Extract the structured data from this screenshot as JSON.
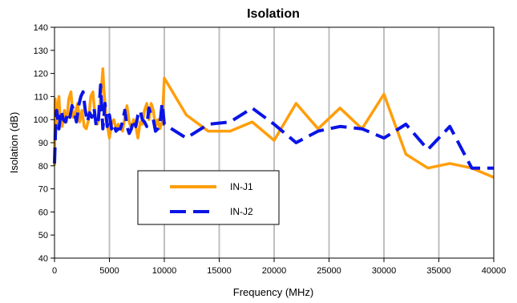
{
  "chart_data": {
    "type": "line",
    "title": "Isolation",
    "xlabel": "Frequency (MHz)",
    "ylabel": "Isolation  (dB)",
    "xlim": [
      0,
      40000
    ],
    "ylim": [
      40,
      140
    ],
    "xticks": [
      0,
      5000,
      10000,
      15000,
      20000,
      25000,
      30000,
      35000,
      40000
    ],
    "yticks": [
      40,
      50,
      60,
      70,
      80,
      90,
      100,
      110,
      120,
      130,
      140
    ],
    "vertical_grid": true,
    "horizontal_grid": false,
    "legend_position": "lower-left-center",
    "series": [
      {
        "name": "IN-J1",
        "color": "#FF9E0B",
        "style": "solid",
        "points": [
          [
            0,
            80
          ],
          [
            60,
            109
          ],
          [
            150,
            97
          ],
          [
            300,
            106
          ],
          [
            400,
            110
          ],
          [
            550,
            98
          ],
          [
            700,
            97
          ],
          [
            900,
            104
          ],
          [
            1100,
            99
          ],
          [
            1300,
            109
          ],
          [
            1500,
            112
          ],
          [
            1700,
            101
          ],
          [
            1900,
            103
          ],
          [
            2100,
            107
          ],
          [
            2300,
            99
          ],
          [
            2500,
            104
          ],
          [
            2700,
            97
          ],
          [
            2900,
            96
          ],
          [
            3100,
            100
          ],
          [
            3300,
            110
          ],
          [
            3500,
            112
          ],
          [
            3700,
            101
          ],
          [
            3900,
            98
          ],
          [
            4100,
            104
          ],
          [
            4300,
            115
          ],
          [
            4400,
            122
          ],
          [
            4500,
            113
          ],
          [
            4700,
            100
          ],
          [
            4900,
            95
          ],
          [
            5000,
            92
          ],
          [
            5200,
            98
          ],
          [
            5400,
            100
          ],
          [
            5600,
            96
          ],
          [
            5800,
            98
          ],
          [
            6000,
            97
          ],
          [
            6200,
            95
          ],
          [
            6400,
            101
          ],
          [
            6600,
            106
          ],
          [
            6800,
            99
          ],
          [
            7000,
            96
          ],
          [
            7200,
            100
          ],
          [
            7400,
            97
          ],
          [
            7600,
            92
          ],
          [
            7800,
            99
          ],
          [
            8000,
            98
          ],
          [
            8200,
            104
          ],
          [
            8400,
            107
          ],
          [
            8600,
            100
          ],
          [
            8800,
            107
          ],
          [
            9000,
            104
          ],
          [
            9200,
            97
          ],
          [
            9400,
            100
          ],
          [
            9600,
            96
          ],
          [
            9800,
            99
          ],
          [
            10000,
            118
          ],
          [
            12000,
            102
          ],
          [
            14000,
            95
          ],
          [
            16000,
            95
          ],
          [
            18000,
            99
          ],
          [
            20000,
            91
          ],
          [
            22000,
            107
          ],
          [
            24000,
            96
          ],
          [
            26000,
            105
          ],
          [
            28000,
            96
          ],
          [
            30000,
            111
          ],
          [
            32000,
            85
          ],
          [
            34000,
            79
          ],
          [
            36000,
            81
          ],
          [
            38000,
            79
          ],
          [
            40000,
            75
          ]
        ]
      },
      {
        "name": "IN-J2",
        "color": "#0A14E6",
        "style": "dashed",
        "points": [
          [
            0,
            81
          ],
          [
            100,
            97
          ],
          [
            200,
            104
          ],
          [
            300,
            100
          ],
          [
            400,
            96
          ],
          [
            600,
            104
          ],
          [
            800,
            100
          ],
          [
            1000,
            99
          ],
          [
            1200,
            103
          ],
          [
            1400,
            101
          ],
          [
            1600,
            106
          ],
          [
            1800,
            103
          ],
          [
            2000,
            99
          ],
          [
            2200,
            106
          ],
          [
            2400,
            110
          ],
          [
            2600,
            112
          ],
          [
            2800,
            104
          ],
          [
            3000,
            99
          ],
          [
            3200,
            103
          ],
          [
            3400,
            101
          ],
          [
            3600,
            105
          ],
          [
            3800,
            97
          ],
          [
            4000,
            100
          ],
          [
            4200,
            115
          ],
          [
            4400,
            96
          ],
          [
            4600,
            107
          ],
          [
            4800,
            97
          ],
          [
            5000,
            102
          ],
          [
            5200,
            96
          ],
          [
            5400,
            98
          ],
          [
            5600,
            95
          ],
          [
            5800,
            96
          ],
          [
            6000,
            96
          ],
          [
            6200,
            99
          ],
          [
            6400,
            104
          ],
          [
            6600,
            97
          ],
          [
            6800,
            94
          ],
          [
            7000,
            96
          ],
          [
            7200,
            100
          ],
          [
            7400,
            97
          ],
          [
            7600,
            102
          ],
          [
            7800,
            104
          ],
          [
            8000,
            100
          ],
          [
            8200,
            99
          ],
          [
            8400,
            97
          ],
          [
            8600,
            105
          ],
          [
            8800,
            102
          ],
          [
            9000,
            100
          ],
          [
            9200,
            95
          ],
          [
            9400,
            96
          ],
          [
            9600,
            98
          ],
          [
            9800,
            107
          ],
          [
            10000,
            98
          ],
          [
            12000,
            92
          ],
          [
            14000,
            98
          ],
          [
            16000,
            99
          ],
          [
            18000,
            105
          ],
          [
            20000,
            98
          ],
          [
            22000,
            90
          ],
          [
            24000,
            95
          ],
          [
            26000,
            97
          ],
          [
            28000,
            96
          ],
          [
            30000,
            92
          ],
          [
            32000,
            98
          ],
          [
            34000,
            87
          ],
          [
            36000,
            97
          ],
          [
            38000,
            79
          ],
          [
            40000,
            79
          ]
        ]
      }
    ]
  }
}
